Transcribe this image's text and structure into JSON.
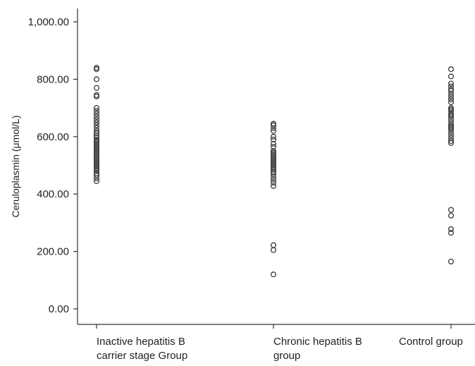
{
  "chart_data": {
    "type": "scatter",
    "ylabel": "Ceruloplasmin (μmol/L)",
    "ylim": [
      0,
      1000
    ],
    "yticks": [
      "0.00",
      "200.00",
      "400.00",
      "600.00",
      "800.00",
      "1,000.00"
    ],
    "ytick_values": [
      0,
      200,
      400,
      600,
      800,
      1000
    ],
    "grid": false,
    "categories": [
      {
        "lines": [
          "Inactive hepatitis B",
          "carrier stage Group"
        ]
      },
      {
        "lines": [
          "Chronic hepatitis B",
          "group"
        ]
      },
      {
        "lines": [
          "Control group"
        ]
      }
    ],
    "series": [
      {
        "category_index": 0,
        "values": [
          840,
          835,
          800,
          770,
          745,
          740,
          700,
          690,
          680,
          670,
          660,
          650,
          640,
          630,
          620,
          612,
          605,
          598,
          590,
          585,
          580,
          575,
          570,
          565,
          560,
          555,
          550,
          545,
          540,
          535,
          530,
          525,
          520,
          515,
          510,
          505,
          500,
          495,
          490,
          485,
          480,
          472,
          465,
          455,
          445
        ]
      },
      {
        "category_index": 1,
        "values": [
          645,
          640,
          630,
          620,
          600,
          590,
          575,
          565,
          550,
          545,
          540,
          535,
          530,
          525,
          520,
          515,
          510,
          505,
          500,
          495,
          490,
          485,
          478,
          470,
          460,
          450,
          440,
          428,
          222,
          205,
          120
        ]
      },
      {
        "category_index": 2,
        "values": [
          835,
          810,
          785,
          775,
          765,
          760,
          750,
          740,
          730,
          720,
          700,
          695,
          690,
          680,
          675,
          670,
          660,
          650,
          640,
          635,
          630,
          625,
          615,
          605,
          595,
          585,
          578,
          345,
          325,
          278,
          265,
          165
        ]
      }
    ]
  }
}
